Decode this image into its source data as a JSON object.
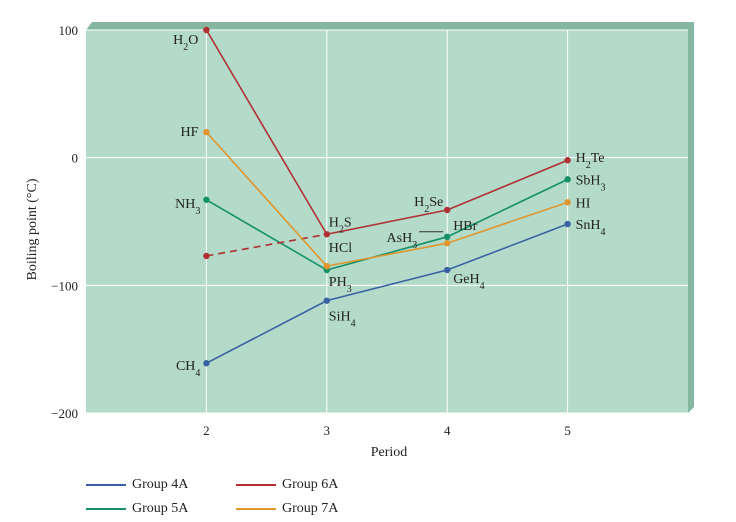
{
  "chart_data": {
    "type": "line",
    "xlabel": "Period",
    "ylabel": "Boiling point (°C)",
    "x": [
      2,
      3,
      4,
      5
    ],
    "xlim": [
      1,
      6
    ],
    "ylim": [
      -200,
      100
    ],
    "yticks": [
      100,
      0,
      -100,
      -200
    ],
    "yticklabels": [
      "100",
      "0",
      "−100",
      "−200"
    ],
    "xticks": [
      2,
      3,
      4,
      5
    ],
    "grid": true,
    "legend_position": "bottom",
    "series": [
      {
        "name": "Group 4A",
        "color": "#3a62a3",
        "values": [
          -161,
          -112,
          -88,
          -52
        ],
        "labels": [
          "CH4",
          "SiH4",
          "GeH4",
          "SnH4"
        ]
      },
      {
        "name": "Group 5A",
        "color": "#15916a",
        "values": [
          -33,
          -88,
          -62,
          -17
        ],
        "labels": [
          "NH3",
          "PH3",
          "AsH3",
          "SbH3"
        ]
      },
      {
        "name": "Group 6A",
        "color": "#b03034",
        "values": [
          100,
          -60,
          -41,
          -2
        ],
        "labels": [
          "H2O",
          "H2S",
          "H2Se",
          "H2Te"
        ],
        "dashed_point": {
          "x": 2,
          "value": -77
        }
      },
      {
        "name": "Group 7A",
        "color": "#e0962e",
        "values": [
          20,
          -85,
          -67,
          -35
        ],
        "labels": [
          "HF",
          "HCl",
          "HBr",
          "HI"
        ]
      }
    ]
  },
  "plot_colors": {
    "background": "#b4dac9",
    "frame_shadow": "#84b7a0",
    "grid": "#ffffff"
  },
  "legend": {
    "items": [
      {
        "label": "Group 4A",
        "color": "#3a62a3"
      },
      {
        "label": "Group 6A",
        "color": "#b03034"
      },
      {
        "label": "Group 5A",
        "color": "#15916a"
      },
      {
        "label": "Group 7A",
        "color": "#e0962e"
      }
    ]
  }
}
